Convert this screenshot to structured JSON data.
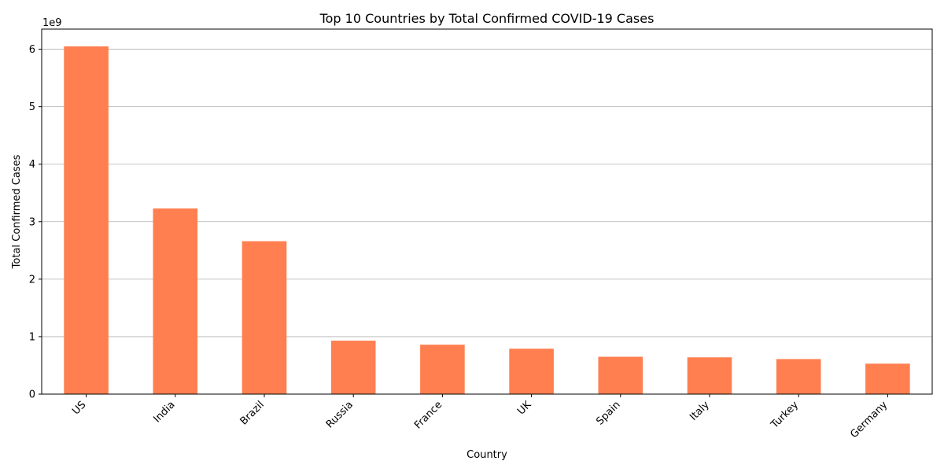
{
  "chart_data": {
    "type": "bar",
    "title": "Top 10 Countries by Total Confirmed COVID-19 Cases",
    "xlabel": "Country",
    "ylabel": "Total Confirmed Cases",
    "y_offset_label": "1e9",
    "categories": [
      "US",
      "India",
      "Brazil",
      "Russia",
      "France",
      "UK",
      "Spain",
      "Italy",
      "Turkey",
      "Germany"
    ],
    "values": [
      6050000000,
      3230000000,
      2660000000,
      930000000,
      860000000,
      790000000,
      650000000,
      640000000,
      610000000,
      530000000
    ],
    "ylim": [
      0,
      6350000000
    ],
    "yticks": [
      0,
      1,
      2,
      3,
      4,
      5,
      6
    ],
    "y_tick_unit": 1000000000,
    "bar_color": "#ff7f50",
    "grid": "horizontal",
    "legend": "none"
  }
}
